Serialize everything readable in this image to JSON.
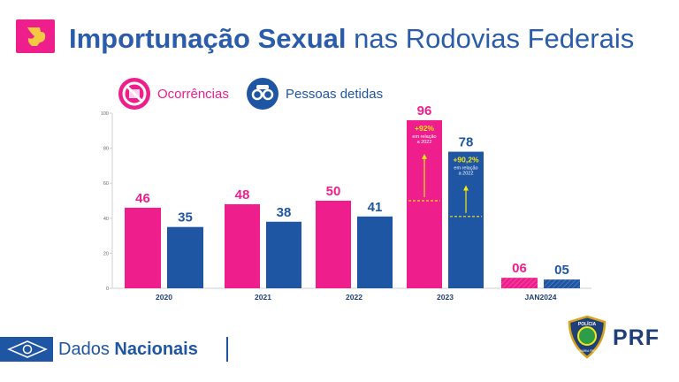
{
  "header": {
    "title_bold": "Importunação Sexual",
    "title_rest": "nas Rodovias Federais"
  },
  "legend": {
    "ocorrencias": "Ocorrências",
    "detidas": "Pessoas detidas"
  },
  "colors": {
    "pink": "#ee1f8c",
    "blue": "#1f56a3",
    "yellow": "#f5e614"
  },
  "chart_data": {
    "type": "bar",
    "title": "Importunação Sexual nas Rodovias Federais",
    "categories": [
      "2020",
      "2021",
      "2022",
      "2023",
      "JAN2024"
    ],
    "series": [
      {
        "name": "Ocorrências",
        "values": [
          46,
          48,
          50,
          96,
          6
        ],
        "labels": [
          "46",
          "48",
          "50",
          "96",
          "06"
        ]
      },
      {
        "name": "Pessoas detidas",
        "values": [
          35,
          38,
          41,
          78,
          5
        ],
        "labels": [
          "35",
          "38",
          "41",
          "78",
          "05"
        ]
      }
    ],
    "ylim": [
      0,
      100
    ],
    "yticks": [
      0,
      20,
      40,
      60,
      80,
      100
    ],
    "annotations": [
      {
        "series": 0,
        "category": "2023",
        "from": 50,
        "pct": "+92%",
        "note_1": "em relação",
        "note_2": "a 2022"
      },
      {
        "series": 1,
        "category": "2023",
        "from": 41,
        "pct": "+90,2%",
        "note_1": "em relação",
        "note_2": "a 2022"
      }
    ]
  },
  "footer": {
    "label": "Dados",
    "label_bold": "Nacionais",
    "brand": "PRF",
    "badge_top": "POLÍCIA",
    "badge_bottom": "RODOVIÁRIA FEDERAL"
  }
}
